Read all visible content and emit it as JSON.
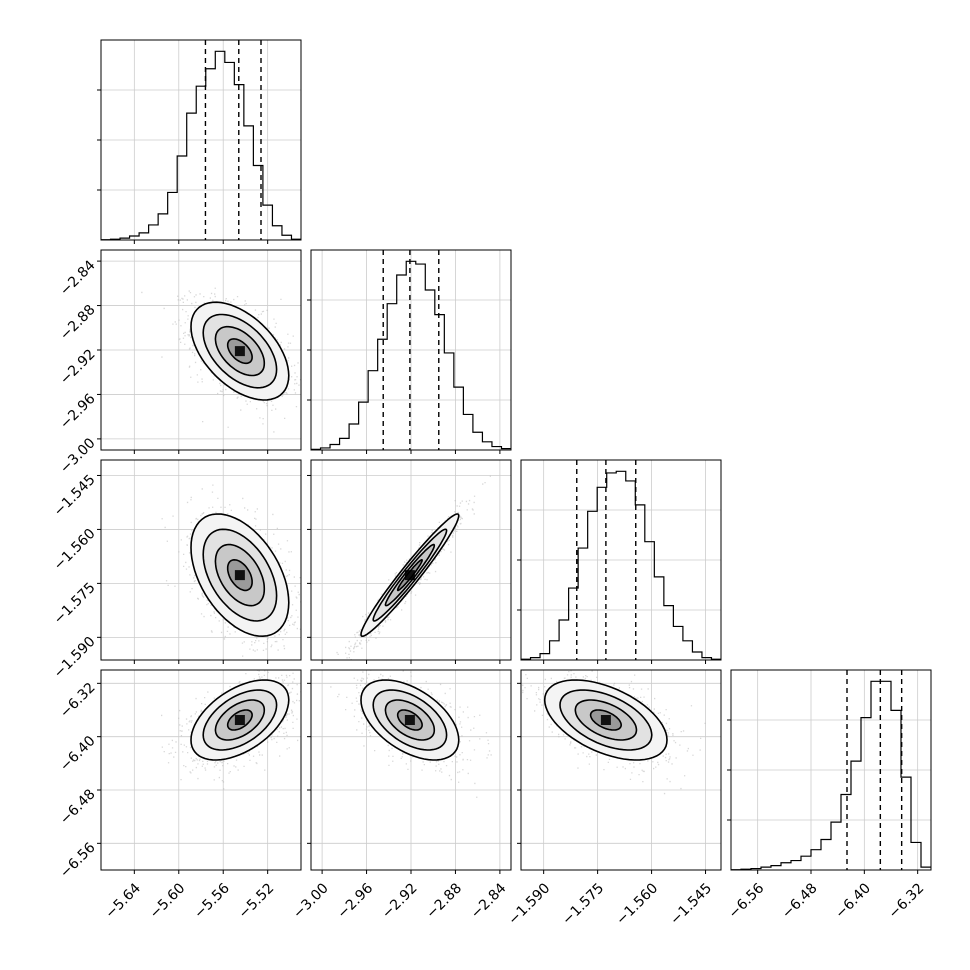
{
  "chart_data": {
    "type": "scatter",
    "plot_kind": "corner",
    "parameters": 4,
    "quantiles_shown": [
      0.16,
      0.5,
      0.84
    ],
    "grid": true,
    "axes": [
      {
        "range": [
          -5.67,
          -5.49
        ],
        "ticks": [
          -5.64,
          -5.6,
          -5.56,
          -5.52
        ],
        "tick_labels": [
          "−5.64",
          "−5.60",
          "−5.56",
          "−5.52"
        ],
        "quantiles": [
          -5.576,
          -5.546,
          -5.526
        ],
        "hist_counts": [
          0.2,
          0.5,
          1.2,
          2.5,
          4.5,
          9.5,
          16.5,
          30,
          53,
          80,
          97,
          108,
          119,
          112,
          98,
          72,
          47,
          22,
          9,
          3,
          0.5
        ]
      },
      {
        "range": [
          -3.01,
          -2.83
        ],
        "ticks": [
          -3.0,
          -2.96,
          -2.92,
          -2.88,
          -2.84
        ],
        "tick_labels": [
          "−3.00",
          "−2.96",
          "−2.92",
          "−2.88",
          "−2.84"
        ],
        "y_ticks": [
          -2.84,
          -2.88,
          -2.92,
          -2.96,
          -3.0
        ],
        "quantiles": [
          -2.945,
          -2.921,
          -2.895
        ],
        "hist_counts": [
          0.5,
          1.5,
          4,
          8.5,
          19,
          35,
          58,
          81,
          107,
          128,
          138,
          136,
          117,
          99,
          71,
          46,
          26,
          13,
          6,
          2.5,
          1
        ]
      },
      {
        "range": [
          -1.5963,
          -1.5407
        ],
        "ticks": [
          -1.59,
          -1.575,
          -1.56,
          -1.545
        ],
        "tick_labels": [
          "−1.590",
          "−1.575",
          "−1.560",
          "−1.545"
        ],
        "y_ticks": [
          -1.545,
          -1.56,
          -1.575,
          -1.59
        ],
        "quantiles": [
          -1.5808,
          -1.5727,
          -1.5644
        ],
        "hist_counts": [
          0.5,
          1.5,
          4,
          12,
          25,
          45,
          70,
          93,
          108,
          117,
          118,
          112,
          97,
          74,
          52,
          34,
          21,
          12,
          5,
          1.5,
          0.5
        ]
      },
      {
        "range": [
          -6.6,
          -6.3
        ],
        "ticks": [
          -6.56,
          -6.48,
          -6.4,
          -6.32
        ],
        "tick_labels": [
          "−6.56",
          "−6.48",
          "−6.40",
          "−6.32"
        ],
        "y_ticks": [
          -6.32,
          -6.4,
          -6.48,
          -6.56
        ],
        "quantiles": [
          -6.426,
          -6.376,
          -6.344
        ],
        "hist_counts": [
          0.2,
          0.5,
          1,
          2,
          3,
          5,
          6.5,
          9.5,
          14,
          21,
          33,
          52,
          75,
          105,
          130,
          130,
          110,
          64,
          19,
          2
        ]
      }
    ],
    "pairs": [
      {
        "x": 0,
        "y": 1,
        "mean": [
          -5.545,
          -2.921
        ],
        "sd": [
          0.022,
          0.022
        ],
        "rho": -0.5
      },
      {
        "x": 0,
        "y": 2,
        "mean": [
          -5.545,
          -1.5727
        ],
        "sd": [
          0.022,
          0.0085
        ],
        "rho": -0.45
      },
      {
        "x": 1,
        "y": 2,
        "mean": [
          -2.921,
          -1.5727
        ],
        "sd": [
          0.022,
          0.0085
        ],
        "rho": 0.97
      },
      {
        "x": 0,
        "y": 3,
        "mean": [
          -5.545,
          -6.375
        ],
        "sd": [
          0.022,
          0.03
        ],
        "rho": 0.5
      },
      {
        "x": 1,
        "y": 3,
        "mean": [
          -2.921,
          -6.375
        ],
        "sd": [
          0.022,
          0.03
        ],
        "rho": -0.5
      },
      {
        "x": 2,
        "y": 3,
        "mean": [
          -1.5727,
          -6.375
        ],
        "sd": [
          0.0085,
          0.03
        ],
        "rho": -0.5
      }
    ]
  }
}
